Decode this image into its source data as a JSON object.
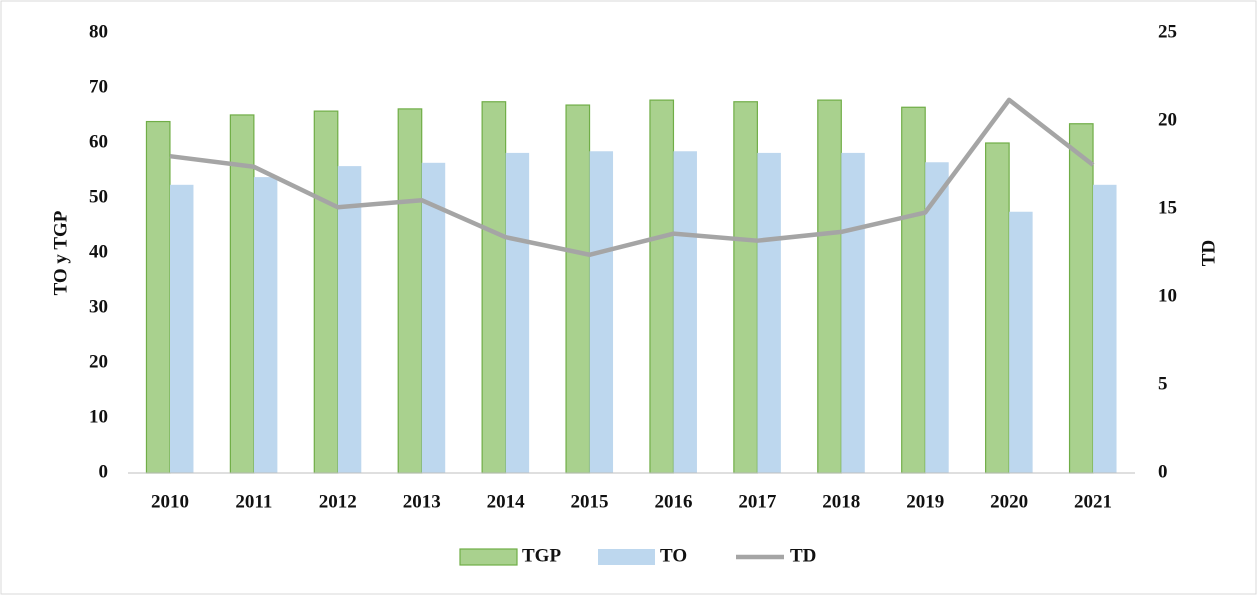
{
  "chart_data": {
    "type": "bar",
    "categories": [
      "2010",
      "2011",
      "2012",
      "2013",
      "2014",
      "2015",
      "2016",
      "2017",
      "2018",
      "2019",
      "2020",
      "2021"
    ],
    "series": [
      {
        "name": "TGP",
        "type": "bar",
        "color": "#a9d18e",
        "stroke": "#70ad47",
        "values": [
          63.9,
          65.1,
          65.8,
          66.2,
          67.5,
          66.9,
          67.8,
          67.5,
          67.8,
          66.5,
          60.0,
          63.5
        ]
      },
      {
        "name": "TO",
        "type": "bar",
        "color": "#bdd7ee",
        "values": [
          52.4,
          53.8,
          55.8,
          56.4,
          58.2,
          58.5,
          58.5,
          58.2,
          58.2,
          56.5,
          47.5,
          52.4
        ]
      },
      {
        "name": "TD",
        "type": "line",
        "axis": "y2",
        "color": "#a5a5a5",
        "values": [
          18.0,
          17.4,
          15.1,
          15.5,
          13.4,
          12.4,
          13.6,
          13.2,
          13.7,
          14.8,
          21.2,
          17.5
        ]
      }
    ],
    "ylabel": "TO y TGP",
    "y2label": "TD",
    "ylim": [
      0,
      80
    ],
    "yticks": [
      0,
      10,
      20,
      30,
      40,
      50,
      60,
      70,
      80
    ],
    "y2lim": [
      0,
      25
    ],
    "y2ticks": [
      0,
      5,
      10,
      15,
      20,
      25
    ],
    "legend": "bottom",
    "grid": false
  }
}
